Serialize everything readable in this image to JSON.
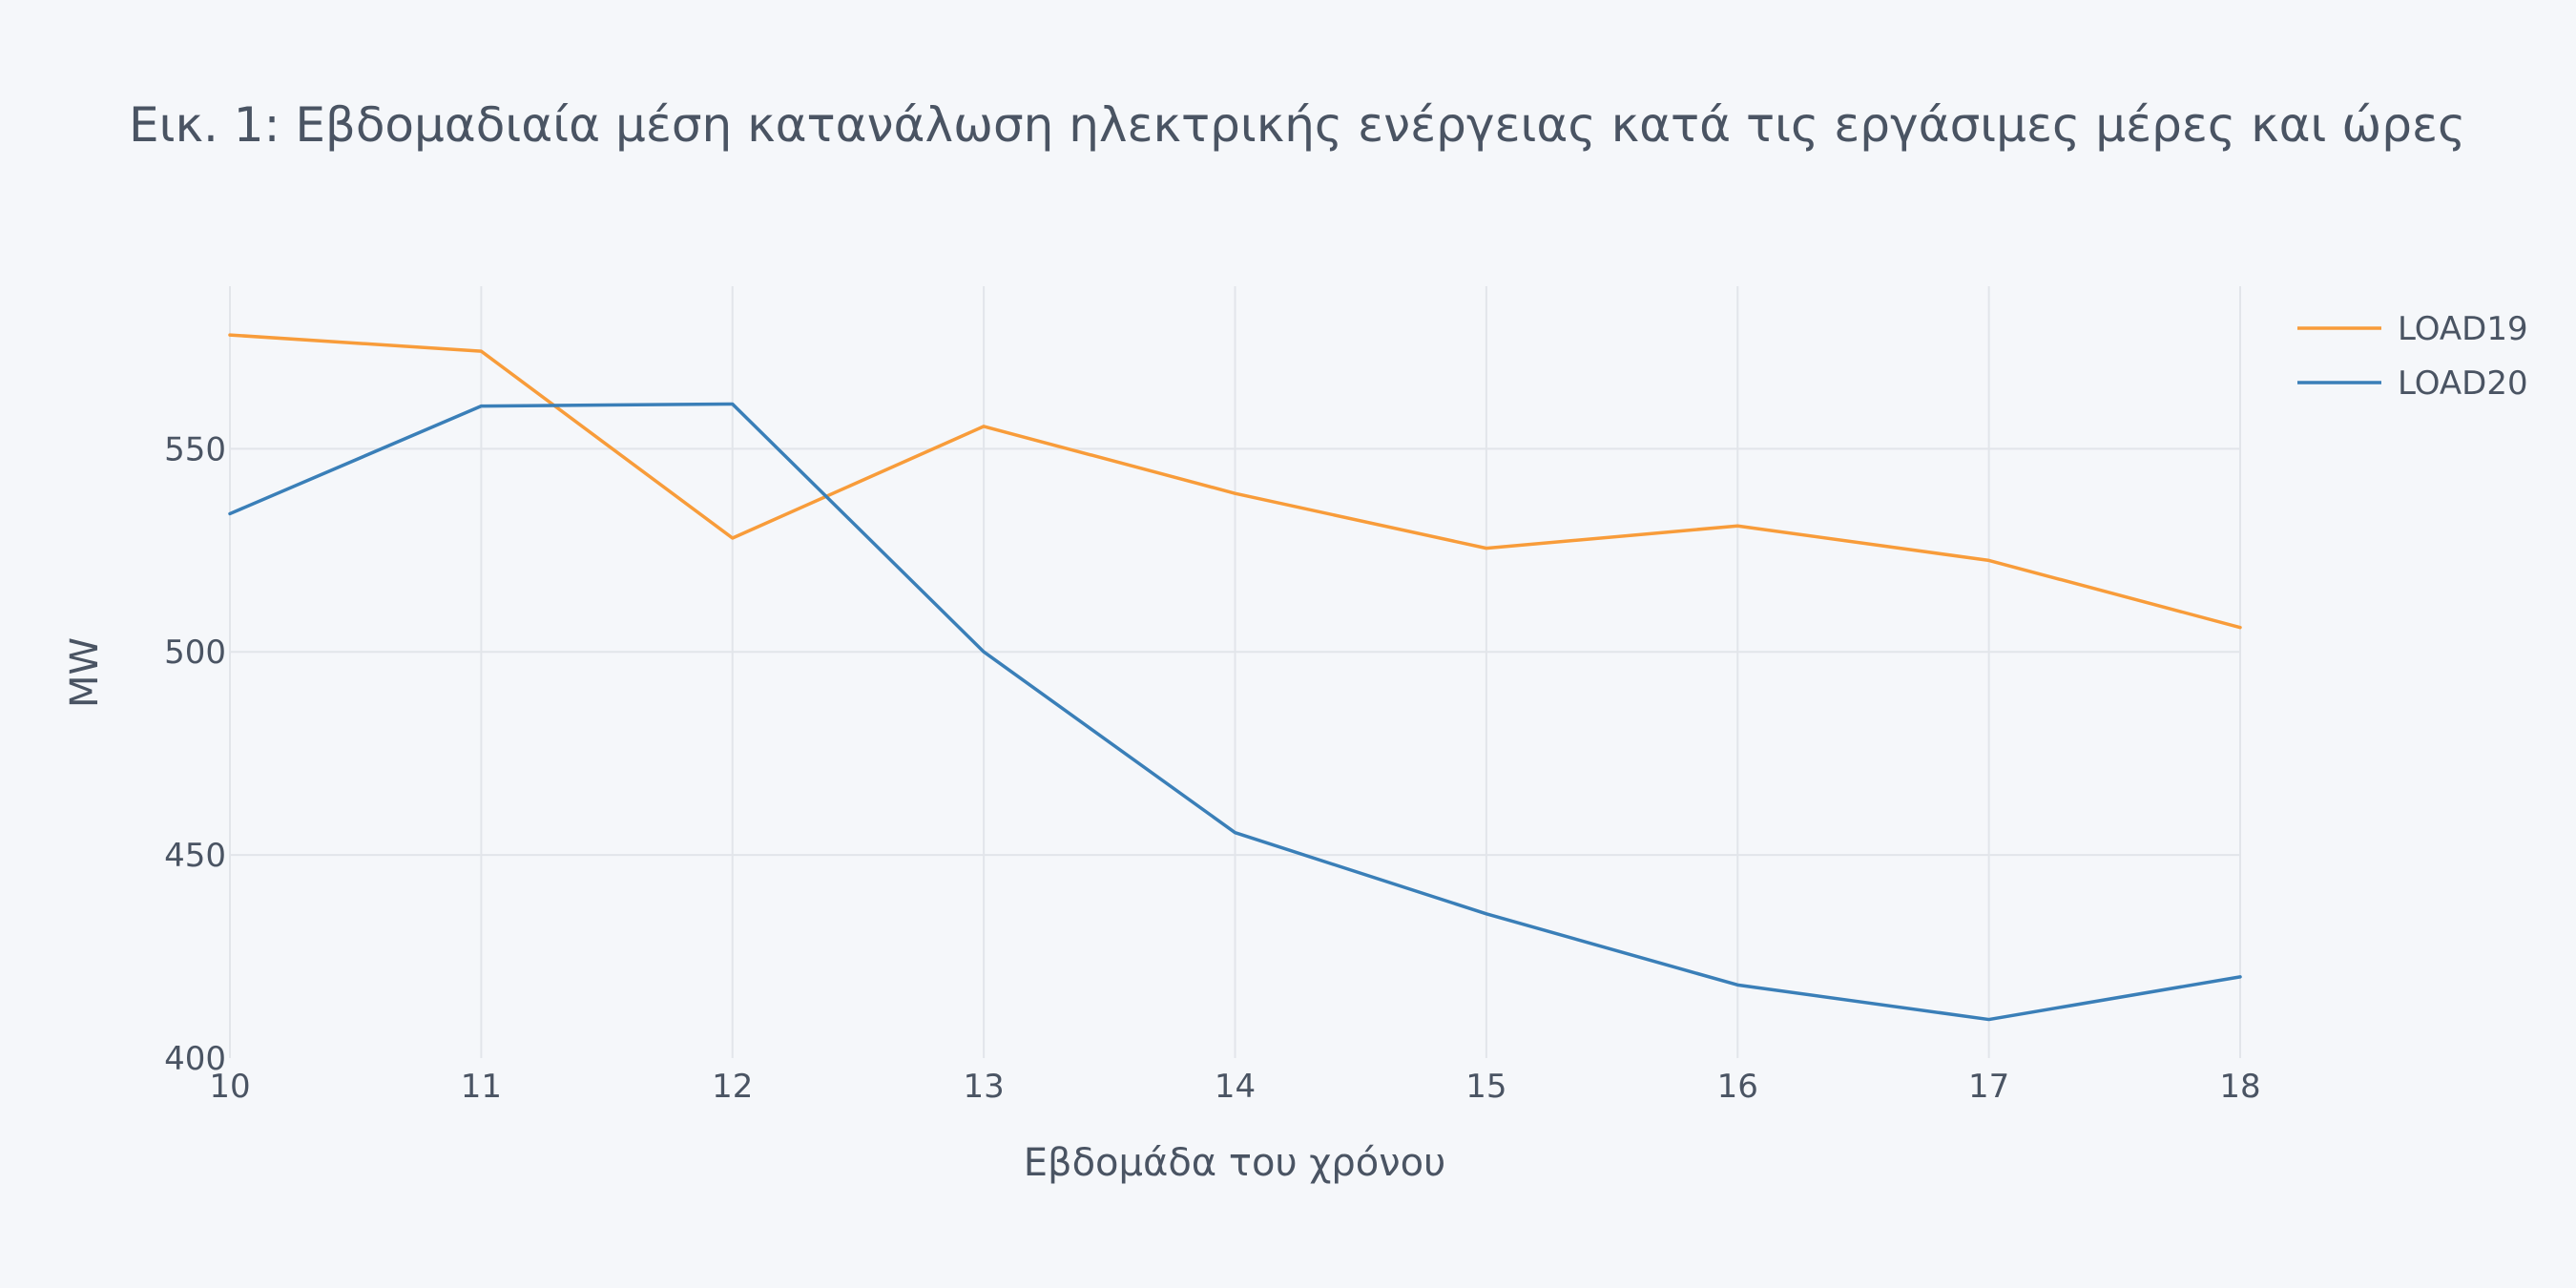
{
  "chart_data": {
    "type": "line",
    "title": "Εικ. 1: Εβδομαδιαία μέση κατανάλωση ηλεκτρικής ενέργειας κατά τις εργάσιμες μέρες και ώρες",
    "xlabel": "Εβδομάδα του χρόνου",
    "ylabel": "MW",
    "x": [
      10,
      11,
      12,
      13,
      14,
      15,
      16,
      17,
      18
    ],
    "xlim": [
      10,
      18
    ],
    "ylim": [
      400,
      590
    ],
    "xticks": [
      "10",
      "11",
      "12",
      "13",
      "14",
      "15",
      "16",
      "17",
      "18"
    ],
    "yticks": [
      "400",
      "450",
      "500",
      "550"
    ],
    "grid": true,
    "legend_position": "top-right",
    "series": [
      {
        "name": "LOAD19",
        "color": "#f89c3a",
        "values": [
          578,
          574,
          528,
          555.5,
          539,
          525.5,
          531,
          522.5,
          506
        ]
      },
      {
        "name": "LOAD20",
        "color": "#3a7fb8",
        "values": [
          534,
          560.5,
          561,
          500,
          455.5,
          435.5,
          418,
          409.5,
          420
        ]
      }
    ]
  }
}
